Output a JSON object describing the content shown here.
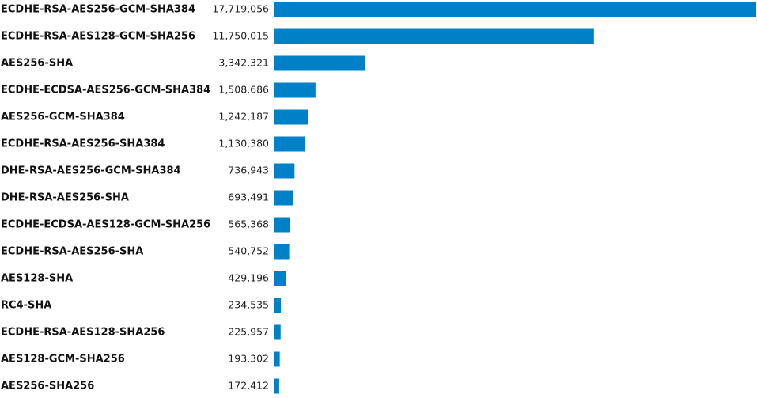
{
  "chart_data": {
    "type": "bar",
    "orientation": "horizontal",
    "categories": [
      "ECDHE-RSA-AES256-GCM-SHA384",
      "ECDHE-RSA-AES128-GCM-SHA256",
      "AES256-SHA",
      "ECDHE-ECDSA-AES256-GCM-SHA384",
      "AES256-GCM-SHA384",
      "ECDHE-RSA-AES256-SHA384",
      "DHE-RSA-AES256-GCM-SHA384",
      "DHE-RSA-AES256-SHA",
      "ECDHE-ECDSA-AES128-GCM-SHA256",
      "ECDHE-RSA-AES256-SHA",
      "AES128-SHA",
      "RC4-SHA",
      "ECDHE-RSA-AES128-SHA256",
      "AES128-GCM-SHA256",
      "AES256-SHA256"
    ],
    "values": [
      17719056,
      11750015,
      3342321,
      1508686,
      1242187,
      1130380,
      736943,
      693491,
      565368,
      540752,
      429196,
      234535,
      225957,
      193302,
      172412
    ],
    "value_labels": [
      "17,719,056",
      "11,750,015",
      "3,342,321",
      "1,508,686",
      "1,242,187",
      "1,130,380",
      "736,943",
      "693,491",
      "565,368",
      "540,752",
      "429,196",
      "234,535",
      "225,957",
      "193,302",
      "172,412"
    ],
    "bar_color": "#0080C6",
    "grid": false,
    "legend": "none"
  }
}
